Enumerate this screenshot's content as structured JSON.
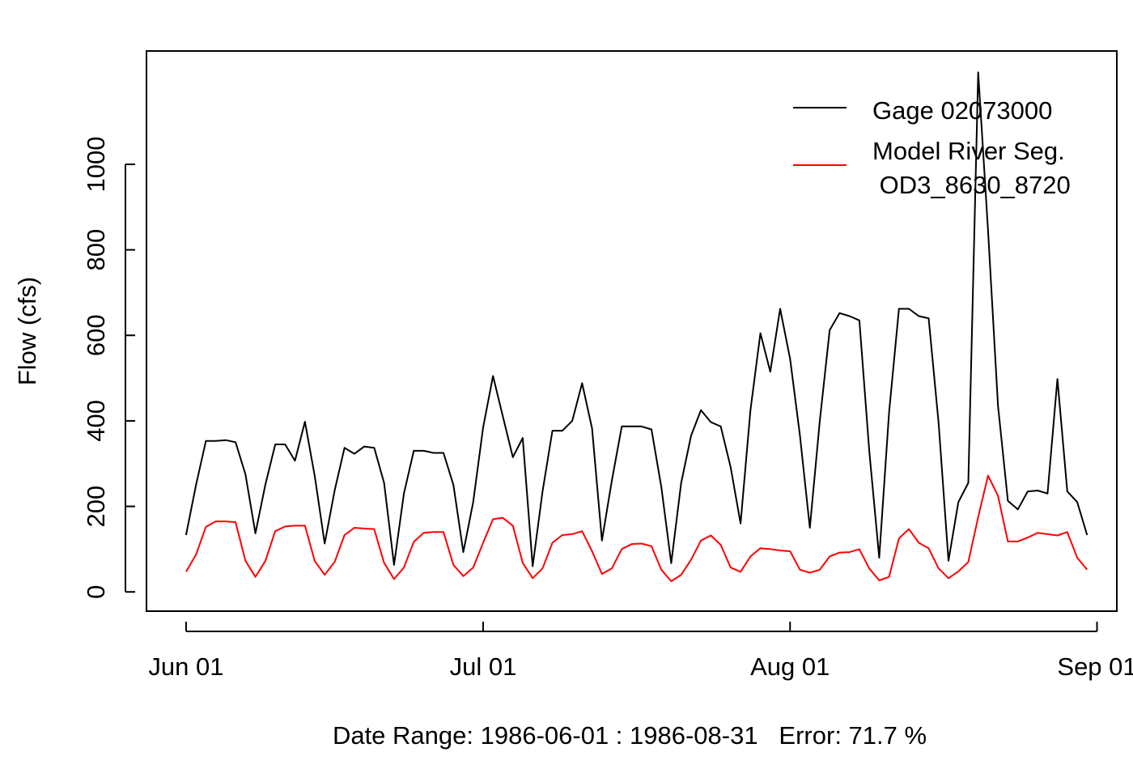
{
  "chart_data": {
    "type": "line",
    "title": "",
    "xlabel": "Date Range: 1986-06-01 : 1986-08-31   Error: 71.7 %",
    "ylabel": "Flow (cfs)",
    "x_start": "1986-06-01",
    "x_tick_dates": [
      "1986-06-01",
      "1986-07-01",
      "1986-08-01",
      "1986-09-01"
    ],
    "x_tick_labels": [
      "Jun 01",
      "Jul 01",
      "Aug 01",
      "Sep 01"
    ],
    "y_ticks": [
      0,
      200,
      400,
      600,
      800,
      1000
    ],
    "ylim": [
      -45,
      1265
    ],
    "xlim": [
      "1986-05-28",
      "1986-09-03"
    ],
    "legend_position": "top-right",
    "legend_lines": [
      {
        "series": 0,
        "label": "Gage 02073000"
      },
      {
        "series": 1,
        "label": "Model River Seg."
      },
      {
        "series": 1,
        "label": " OD3_8630_8720"
      }
    ],
    "series": [
      {
        "name": "Gage 02073000",
        "color": "#000000",
        "values": [
          133,
          250,
          353,
          353,
          355,
          350,
          275,
          137,
          250,
          345,
          345,
          307,
          398,
          270,
          113,
          237,
          337,
          323,
          340,
          337,
          255,
          63,
          230,
          330,
          330,
          325,
          325,
          250,
          93,
          210,
          385,
          505,
          410,
          315,
          360,
          60,
          235,
          377,
          377,
          400,
          488,
          382,
          120,
          260,
          387,
          387,
          387,
          380,
          245,
          67,
          255,
          365,
          425,
          397,
          387,
          292,
          160,
          425,
          605,
          515,
          662,
          545,
          365,
          150,
          400,
          612,
          652,
          645,
          635,
          330,
          80,
          420,
          662,
          662,
          645,
          640,
          395,
          73,
          210,
          255,
          1215,
          845,
          435,
          213,
          193,
          235,
          237,
          230,
          498,
          235,
          210,
          133
        ]
      },
      {
        "name": "Model River Seg. OD3_8630_8720",
        "color": "#ff0000",
        "values": [
          47,
          87,
          152,
          165,
          165,
          163,
          73,
          35,
          72,
          142,
          153,
          155,
          155,
          72,
          40,
          70,
          133,
          150,
          148,
          147,
          68,
          30,
          57,
          117,
          138,
          140,
          140,
          63,
          37,
          57,
          115,
          170,
          173,
          155,
          68,
          32,
          55,
          115,
          133,
          135,
          142,
          95,
          42,
          55,
          100,
          112,
          113,
          107,
          52,
          25,
          40,
          75,
          120,
          132,
          110,
          57,
          47,
          83,
          102,
          100,
          97,
          95,
          52,
          45,
          52,
          83,
          92,
          93,
          100,
          55,
          27,
          35,
          125,
          147,
          115,
          102,
          55,
          32,
          48,
          70,
          175,
          272,
          225,
          118,
          118,
          127,
          138,
          135,
          132,
          140,
          80,
          52
        ]
      }
    ]
  }
}
